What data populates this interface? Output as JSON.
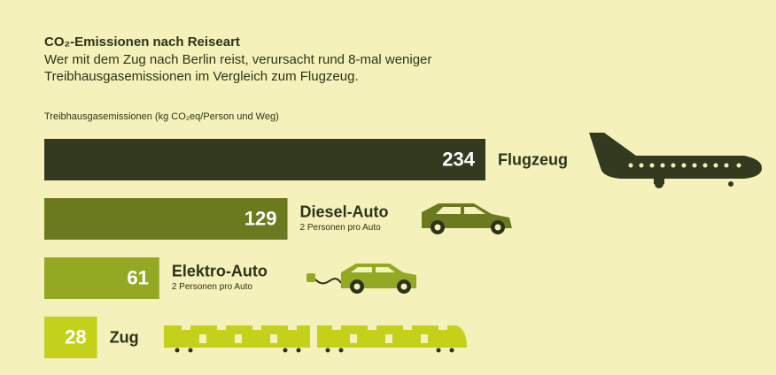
{
  "chart_data": {
    "type": "bar",
    "orientation": "horizontal",
    "title": "CO₂-Emissionen nach Reiseart",
    "subtitle": "Wer mit dem Zug nach Berlin reist, verursacht rund 8-mal weniger Treibhausgasemissionen im Vergleich zum Flugzeug.",
    "axis_label": "Treibhausgasemissionen (kg CO₂eq/Person und Weg)",
    "categories": [
      "Flugzeug",
      "Diesel-Auto",
      "Elektro-Auto",
      "Zug"
    ],
    "category_notes": [
      null,
      "2 Personen pro Auto",
      "2 Personen pro Auto",
      null
    ],
    "values": [
      234,
      129,
      61,
      28
    ],
    "colors": [
      "#333a1f",
      "#6b7a1f",
      "#94a923",
      "#c3d11b"
    ]
  }
}
